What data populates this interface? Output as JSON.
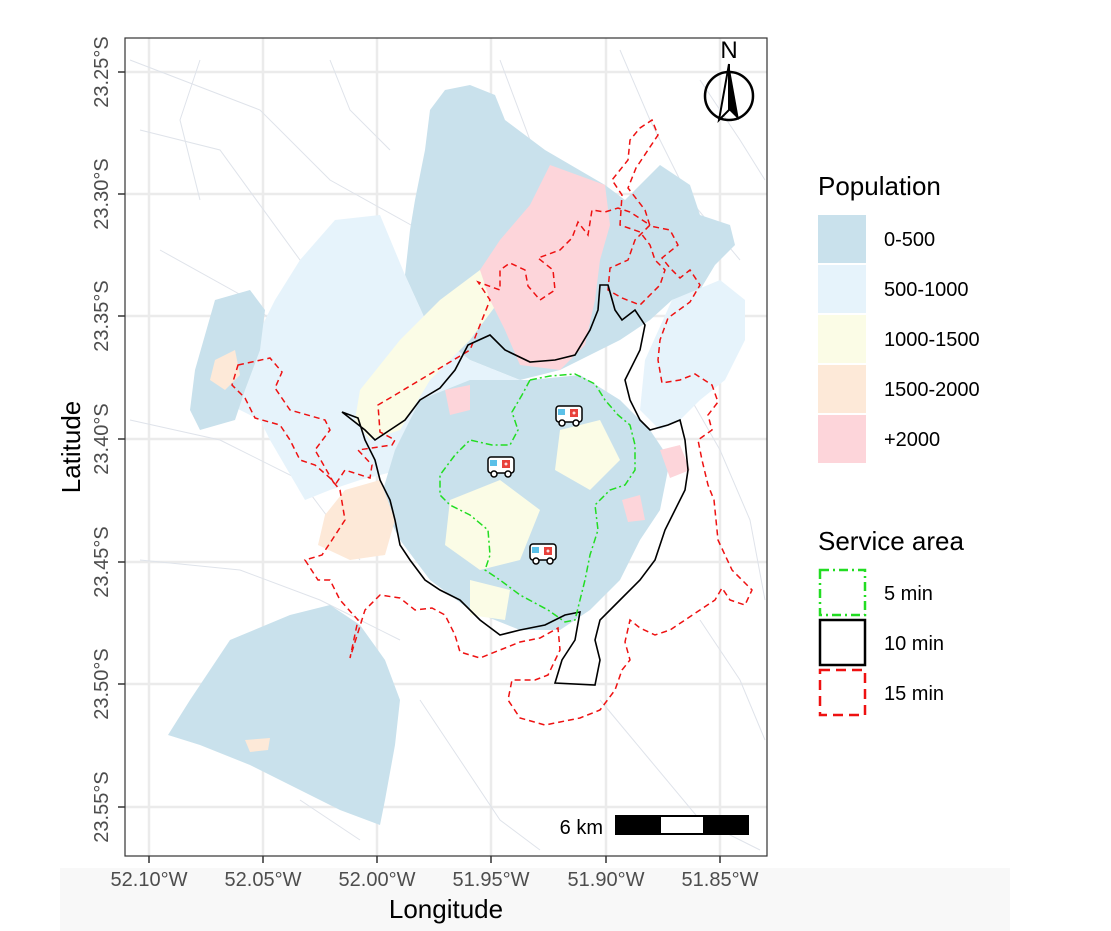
{
  "map": {
    "x_axis_title": "Longitude",
    "y_axis_title": "Latitude",
    "x_ticks": [
      "52.10°W",
      "52.05°W",
      "52.00°W",
      "51.95°W",
      "51.90°W",
      "51.85°W"
    ],
    "y_ticks": [
      "23.25°S",
      "23.30°S",
      "23.35°S",
      "23.40°S",
      "23.45°S",
      "23.50°S",
      "23.55°S"
    ],
    "north_arrow_label": "N",
    "scale_bar_label": "6 km",
    "ambulance_icon": "ambulance-icon",
    "ambulance_count": 3
  },
  "legend": {
    "population": {
      "title": "Population",
      "items": [
        {
          "label": "0-500",
          "color": "#c9e1ec"
        },
        {
          "label": "500-1000",
          "color": "#e6f3fb"
        },
        {
          "label": "1000-1500",
          "color": "#fbfce6"
        },
        {
          "label": "1500-2000",
          "color": "#fde9d8"
        },
        {
          "label": "+2000",
          "color": "#fdd5da"
        }
      ]
    },
    "service_area": {
      "title": "Service area",
      "items": [
        {
          "label": "5 min",
          "color": "#22dd22",
          "style": "dash-dot"
        },
        {
          "label": "10 min",
          "color": "#000000",
          "style": "solid"
        },
        {
          "label": "15 min",
          "color": "#ee1111",
          "style": "dashed"
        }
      ]
    }
  }
}
